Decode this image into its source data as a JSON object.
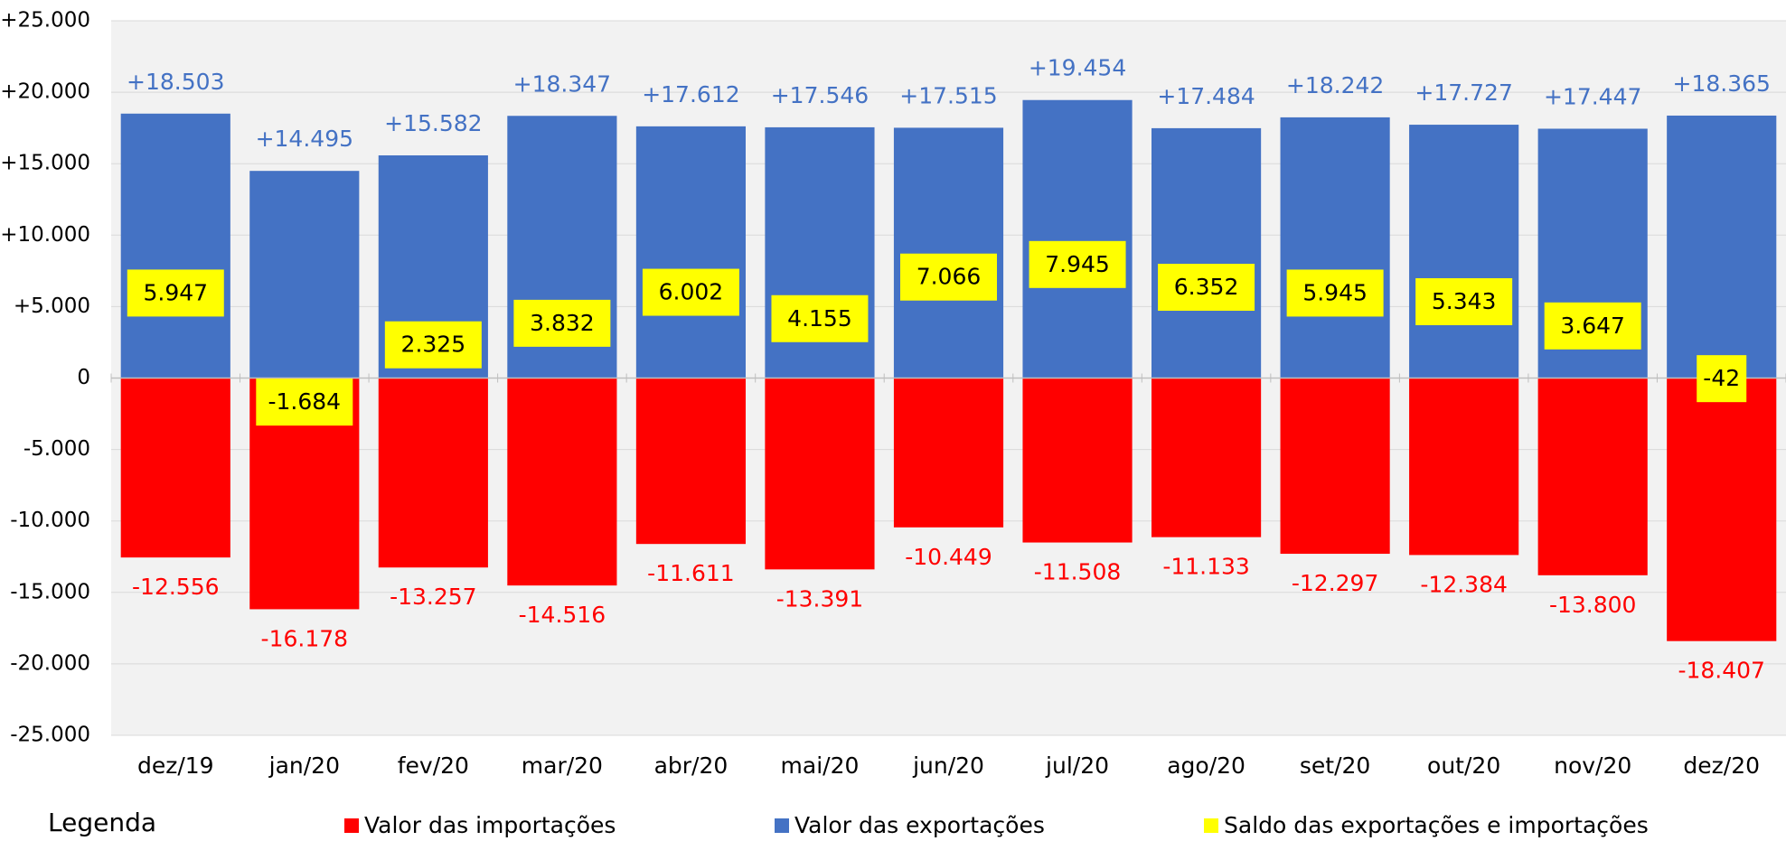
{
  "chart_data": {
    "type": "bar",
    "categories": [
      "dez/19",
      "jan/20",
      "fev/20",
      "mar/20",
      "abr/20",
      "mai/20",
      "jun/20",
      "jul/20",
      "ago/20",
      "set/20",
      "out/20",
      "nov/20",
      "dez/20"
    ],
    "series": [
      {
        "name": "Valor das importações",
        "color": "#ff0000",
        "values": [
          -12556,
          -16178,
          -13257,
          -14516,
          -11611,
          -13391,
          -10449,
          -11508,
          -11133,
          -12297,
          -12384,
          -13800,
          -18407
        ],
        "value_labels": [
          "-12.556",
          "-16.178",
          "-13.257",
          "-14.516",
          "-11.611",
          "-13.391",
          "-10.449",
          "-11.508",
          "-11.133",
          "-12.297",
          "-12.384",
          "-13.800",
          "-18.407"
        ]
      },
      {
        "name": "Valor das exportações",
        "color": "#4472c4",
        "values": [
          18503,
          14495,
          15582,
          18347,
          17612,
          17546,
          17515,
          19454,
          17484,
          18242,
          17727,
          17447,
          18365
        ],
        "value_labels": [
          "+18.503",
          "+14.495",
          "+15.582",
          "+18.347",
          "+17.612",
          "+17.546",
          "+17.515",
          "+19.454",
          "+17.484",
          "+18.242",
          "+17.727",
          "+17.447",
          "+18.365"
        ]
      },
      {
        "name": "Saldo das exportações e importações",
        "color": "#ffff00",
        "values": [
          5947,
          -1684,
          2325,
          3832,
          6002,
          4155,
          7066,
          7945,
          6352,
          5945,
          5343,
          3647,
          -42
        ],
        "value_labels": [
          "5.947",
          "-1.684",
          "2.325",
          "3.832",
          "6.002",
          "4.155",
          "7.066",
          "7.945",
          "6.352",
          "5.945",
          "5.343",
          "3.647",
          "-42"
        ]
      }
    ],
    "ylim": [
      -25000,
      25000
    ],
    "yticks": [
      {
        "value": -25000,
        "label": "-25.000"
      },
      {
        "value": -20000,
        "label": "-20.000"
      },
      {
        "value": -15000,
        "label": "-15.000"
      },
      {
        "value": -10000,
        "label": "-10.000"
      },
      {
        "value": -5000,
        "label": "-5.000"
      },
      0,
      {
        "value": 5000,
        "label": "+5.000"
      },
      {
        "value": 10000,
        "label": "+10.000"
      },
      {
        "value": 15000,
        "label": "+15.000"
      },
      {
        "value": 20000,
        "label": "+20.000"
      },
      {
        "value": 25000,
        "label": "+25.000"
      }
    ],
    "grid": true,
    "legend_title": "Legenda",
    "legend_position": "bottom"
  }
}
